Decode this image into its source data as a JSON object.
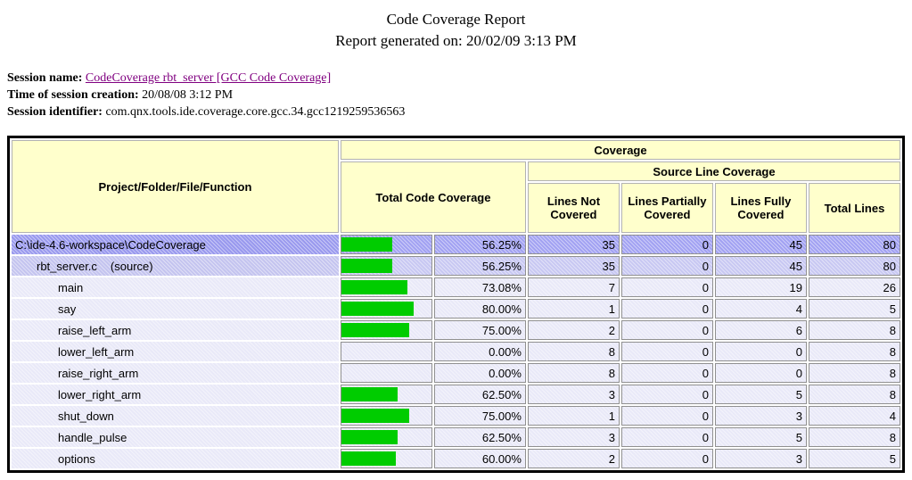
{
  "page": {
    "title": "Code Coverage Report",
    "generated": "Report generated on: 20/02/09 3:13 PM"
  },
  "session": {
    "name_label": "Session name:",
    "name_link": "CodeCoverage rbt_server [GCC Code Coverage]",
    "time_label": "Time of session creation:",
    "time_value": "20/08/08 3:12 PM",
    "id_label": "Session identifier:",
    "id_value": "com.qnx.tools.ide.coverage.core.gcc.34.gcc1219259536563"
  },
  "table": {
    "headers": {
      "name": "Project/Folder/File/Function",
      "coverage": "Coverage",
      "total_code_coverage": "Total Code Coverage",
      "source_line_coverage": "Source Line Coverage",
      "lines_not_covered": "Lines Not Covered",
      "lines_partially_covered": "Lines Partially Covered",
      "lines_fully_covered": "Lines Fully Covered",
      "total_lines": "Total Lines"
    },
    "rows": [
      {
        "level": 0,
        "tone": "project",
        "name": "C:\\ide-4.6-workspace\\CodeCoverage",
        "suffix": "",
        "pct": 56.25,
        "pct_label": "56.25%",
        "not_covered": "35",
        "partial": "0",
        "full": "45",
        "total": "80"
      },
      {
        "level": 1,
        "tone": "file",
        "name": "rbt_server.c",
        "suffix": "(source)",
        "pct": 56.25,
        "pct_label": "56.25%",
        "not_covered": "35",
        "partial": "0",
        "full": "45",
        "total": "80"
      },
      {
        "level": 2,
        "tone": "fn",
        "name": "main",
        "suffix": "",
        "pct": 73.08,
        "pct_label": "73.08%",
        "not_covered": "7",
        "partial": "0",
        "full": "19",
        "total": "26"
      },
      {
        "level": 2,
        "tone": "fn",
        "name": "say",
        "suffix": "",
        "pct": 80,
        "pct_label": "80.00%",
        "not_covered": "1",
        "partial": "0",
        "full": "4",
        "total": "5"
      },
      {
        "level": 2,
        "tone": "fn",
        "name": "raise_left_arm",
        "suffix": "",
        "pct": 75,
        "pct_label": "75.00%",
        "not_covered": "2",
        "partial": "0",
        "full": "6",
        "total": "8"
      },
      {
        "level": 2,
        "tone": "fn",
        "name": "lower_left_arm",
        "suffix": "",
        "pct": 0,
        "pct_label": "0.00%",
        "not_covered": "8",
        "partial": "0",
        "full": "0",
        "total": "8"
      },
      {
        "level": 2,
        "tone": "fn",
        "name": "raise_right_arm",
        "suffix": "",
        "pct": 0,
        "pct_label": "0.00%",
        "not_covered": "8",
        "partial": "0",
        "full": "0",
        "total": "8"
      },
      {
        "level": 2,
        "tone": "fn",
        "name": "lower_right_arm",
        "suffix": "",
        "pct": 62.5,
        "pct_label": "62.50%",
        "not_covered": "3",
        "partial": "0",
        "full": "5",
        "total": "8"
      },
      {
        "level": 2,
        "tone": "fn",
        "name": "shut_down",
        "suffix": "",
        "pct": 75,
        "pct_label": "75.00%",
        "not_covered": "1",
        "partial": "0",
        "full": "3",
        "total": "4"
      },
      {
        "level": 2,
        "tone": "fn",
        "name": "handle_pulse",
        "suffix": "",
        "pct": 62.5,
        "pct_label": "62.50%",
        "not_covered": "3",
        "partial": "0",
        "full": "5",
        "total": "8"
      },
      {
        "level": 2,
        "tone": "fn",
        "name": "options",
        "suffix": "",
        "pct": 60,
        "pct_label": "60.00%",
        "not_covered": "2",
        "partial": "0",
        "full": "3",
        "total": "5"
      }
    ]
  },
  "colors": {
    "bar_green": "#00CC00",
    "header_bg": "#FFFFCC",
    "row_project_bg": "#A2A2F2",
    "row_file_bg": "#C8C8F2",
    "row_function_bg": "#E9E9F8",
    "link_purple": "#800080"
  }
}
